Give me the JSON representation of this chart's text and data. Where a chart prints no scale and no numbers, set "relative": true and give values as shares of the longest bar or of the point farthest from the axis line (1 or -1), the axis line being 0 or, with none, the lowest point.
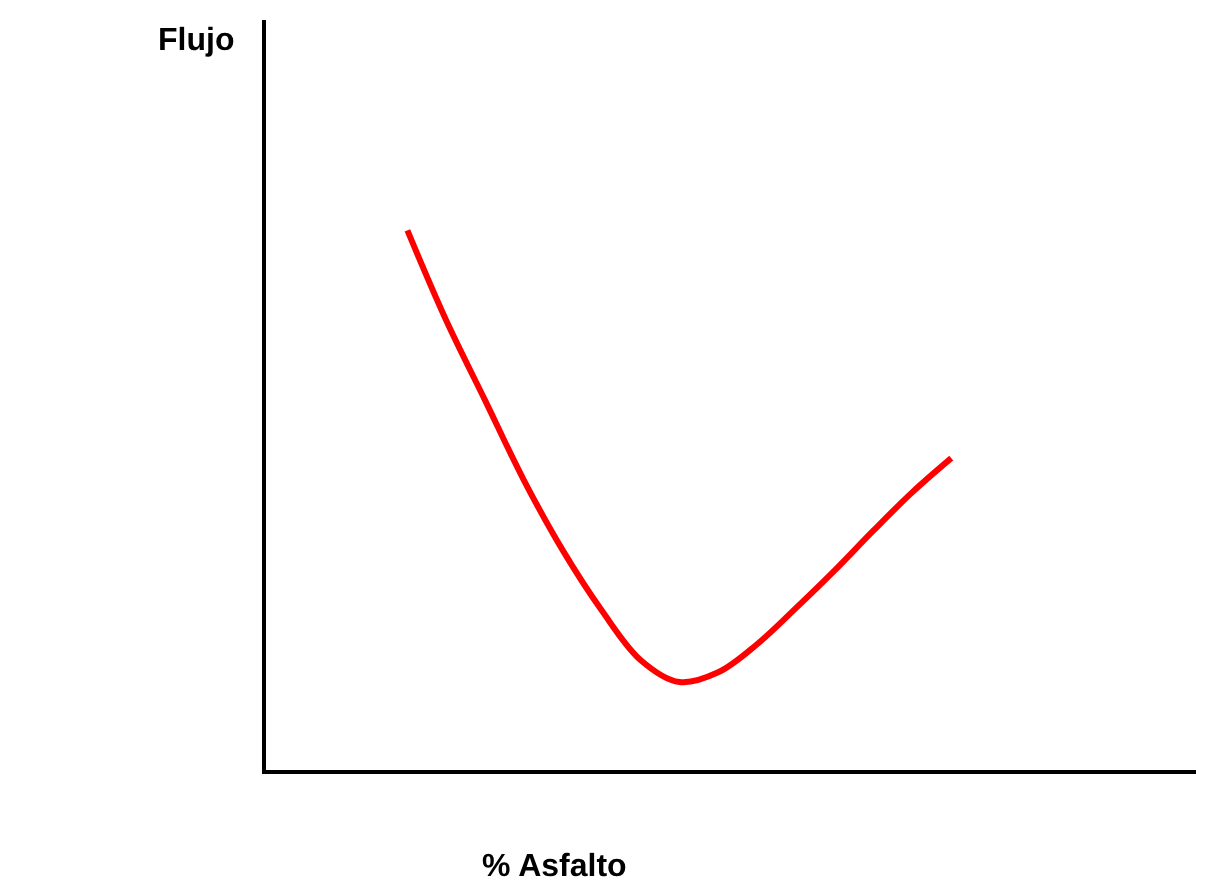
{
  "chart_data": {
    "type": "line",
    "relative": true,
    "xlabel": "% Asfalto",
    "annotations": [
      "Flujo"
    ],
    "categories": [
      null,
      null,
      null,
      null,
      null,
      null,
      null,
      null,
      null,
      null,
      null,
      null,
      null,
      null,
      null
    ],
    "series": [
      {
        "color": "#ff0000",
        "values": [
          1,
          0.833,
          0.685,
          0.537,
          0.407,
          0.296,
          0.204,
          0.163,
          0.181,
          0.233,
          0.3,
          0.37,
          0.444,
          0.515,
          0.578
        ]
      }
    ],
    "legend": false,
    "marker": "none",
    "line_style": "solid"
  }
}
